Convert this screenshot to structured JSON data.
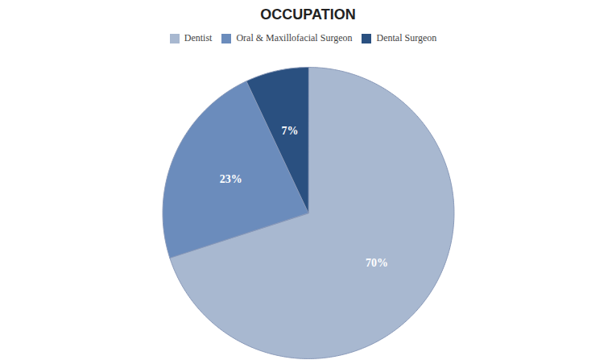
{
  "chart_data": {
    "type": "pie",
    "title": "OCCUPATION",
    "categories": [
      "Dentist",
      "Oral & Maxillofacial Surgeon",
      "Dental Surgeon"
    ],
    "values": [
      70,
      23,
      7
    ],
    "value_labels": [
      "70%",
      "23%",
      "7%"
    ],
    "colors": [
      "#a8b8d0",
      "#6b8cbc",
      "#2a5080"
    ],
    "data_labels": true,
    "legend": "top"
  }
}
